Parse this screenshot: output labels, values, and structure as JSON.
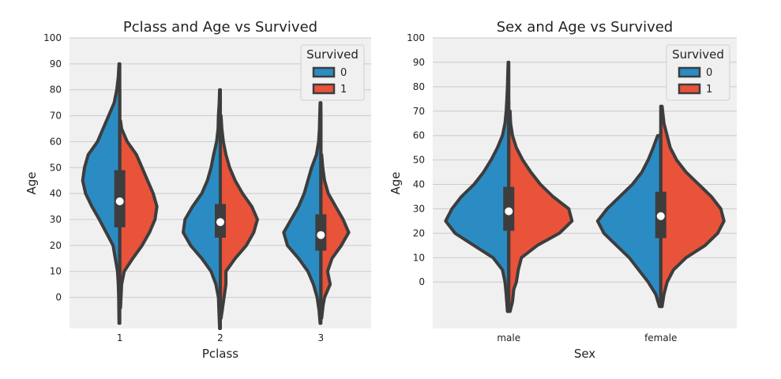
{
  "colors": {
    "class0": "#2b8cc4",
    "class1": "#e8533a",
    "outline": "#3d3d3d",
    "panel_bg": "#f0f0f0",
    "grid": "#cbcbcb",
    "median": "#ffffff"
  },
  "chart_data": [
    {
      "type": "violin",
      "split": true,
      "title": "Pclass and Age vs Survived",
      "xlabel": "Pclass",
      "ylabel": "Age",
      "categories": [
        "1",
        "2",
        "3"
      ],
      "ylim": [
        -12,
        100
      ],
      "yticks": [
        0,
        10,
        20,
        30,
        40,
        50,
        60,
        70,
        80,
        90,
        100
      ],
      "grid": "horizontal",
      "legend": {
        "title": "Survived",
        "placement": "top-right",
        "entries": [
          "0",
          "1"
        ]
      },
      "series": [
        {
          "name": "0",
          "color": "#2b8cc4"
        },
        {
          "name": "1",
          "color": "#e8533a"
        }
      ],
      "violins": [
        {
          "category": "1",
          "box": {
            "q1": 27,
            "median": 37,
            "q3": 49,
            "whisker_low": 1,
            "whisker_high": 80
          },
          "left_profile": [
            [
              -10,
              0.02
            ],
            [
              0,
              0.03
            ],
            [
              5,
              0.04
            ],
            [
              10,
              0.06
            ],
            [
              20,
              0.18
            ],
            [
              30,
              0.55
            ],
            [
              35,
              0.75
            ],
            [
              40,
              0.92
            ],
            [
              45,
              1.0
            ],
            [
              50,
              0.95
            ],
            [
              55,
              0.85
            ],
            [
              60,
              0.6
            ],
            [
              65,
              0.45
            ],
            [
              70,
              0.3
            ],
            [
              75,
              0.15
            ],
            [
              80,
              0.08
            ],
            [
              85,
              0.04
            ],
            [
              90,
              0.02
            ]
          ],
          "right_profile": [
            [
              -4,
              0.02
            ],
            [
              5,
              0.05
            ],
            [
              10,
              0.12
            ],
            [
              15,
              0.35
            ],
            [
              20,
              0.6
            ],
            [
              25,
              0.8
            ],
            [
              30,
              0.95
            ],
            [
              35,
              1.0
            ],
            [
              40,
              0.9
            ],
            [
              45,
              0.75
            ],
            [
              50,
              0.6
            ],
            [
              55,
              0.45
            ],
            [
              60,
              0.2
            ],
            [
              65,
              0.05
            ],
            [
              68,
              0.02
            ]
          ]
        },
        {
          "category": "2",
          "box": {
            "q1": 23,
            "median": 29,
            "q3": 36,
            "whisker_low": 1,
            "whisker_high": 70
          },
          "left_profile": [
            [
              -12,
              0.02
            ],
            [
              0,
              0.05
            ],
            [
              5,
              0.12
            ],
            [
              10,
              0.25
            ],
            [
              15,
              0.5
            ],
            [
              20,
              0.8
            ],
            [
              25,
              1.0
            ],
            [
              30,
              0.95
            ],
            [
              35,
              0.75
            ],
            [
              40,
              0.5
            ],
            [
              45,
              0.35
            ],
            [
              50,
              0.25
            ],
            [
              55,
              0.18
            ],
            [
              60,
              0.1
            ],
            [
              65,
              0.06
            ],
            [
              70,
              0.05
            ],
            [
              75,
              0.03
            ],
            [
              80,
              0.02
            ]
          ],
          "right_profile": [
            [
              -8,
              0.02
            ],
            [
              -5,
              0.05
            ],
            [
              0,
              0.1
            ],
            [
              5,
              0.15
            ],
            [
              10,
              0.15
            ],
            [
              15,
              0.4
            ],
            [
              20,
              0.7
            ],
            [
              25,
              0.9
            ],
            [
              30,
              1.0
            ],
            [
              35,
              0.85
            ],
            [
              40,
              0.6
            ],
            [
              45,
              0.4
            ],
            [
              50,
              0.25
            ],
            [
              55,
              0.15
            ],
            [
              60,
              0.08
            ],
            [
              65,
              0.04
            ],
            [
              70,
              0.02
            ]
          ]
        },
        {
          "category": "3",
          "box": {
            "q1": 18,
            "median": 24,
            "q3": 32,
            "whisker_low": 1,
            "whisker_high": 72
          },
          "left_profile": [
            [
              -10,
              0.02
            ],
            [
              -5,
              0.05
            ],
            [
              0,
              0.1
            ],
            [
              5,
              0.2
            ],
            [
              10,
              0.35
            ],
            [
              15,
              0.6
            ],
            [
              20,
              0.9
            ],
            [
              25,
              1.0
            ],
            [
              30,
              0.8
            ],
            [
              35,
              0.6
            ],
            [
              40,
              0.45
            ],
            [
              45,
              0.35
            ],
            [
              50,
              0.25
            ],
            [
              55,
              0.12
            ],
            [
              60,
              0.06
            ],
            [
              65,
              0.04
            ],
            [
              70,
              0.03
            ],
            [
              75,
              0.02
            ]
          ],
          "right_profile": [
            [
              -8,
              0.02
            ],
            [
              -3,
              0.06
            ],
            [
              0,
              0.1
            ],
            [
              5,
              0.25
            ],
            [
              10,
              0.18
            ],
            [
              15,
              0.3
            ],
            [
              20,
              0.55
            ],
            [
              25,
              0.75
            ],
            [
              30,
              0.6
            ],
            [
              35,
              0.4
            ],
            [
              40,
              0.2
            ],
            [
              45,
              0.1
            ],
            [
              50,
              0.05
            ],
            [
              55,
              0.02
            ]
          ]
        }
      ]
    },
    {
      "type": "violin",
      "split": true,
      "title": "Sex and Age vs Survived",
      "xlabel": "Sex",
      "ylabel": "Age",
      "categories": [
        "male",
        "female"
      ],
      "ylim": [
        -19,
        100
      ],
      "yticks": [
        0,
        10,
        20,
        30,
        40,
        50,
        60,
        70,
        80,
        90,
        100
      ],
      "grid": "horizontal",
      "legend": {
        "title": "Survived",
        "placement": "top-right",
        "entries": [
          "0",
          "1"
        ]
      },
      "series": [
        {
          "name": "0",
          "color": "#2b8cc4"
        },
        {
          "name": "1",
          "color": "#e8533a"
        }
      ],
      "violins": [
        {
          "category": "male",
          "box": {
            "q1": 21,
            "median": 29,
            "q3": 39,
            "whisker_low": 1,
            "whisker_high": 74
          },
          "left_profile": [
            [
              -12,
              0.02
            ],
            [
              -5,
              0.04
            ],
            [
              0,
              0.06
            ],
            [
              5,
              0.1
            ],
            [
              10,
              0.25
            ],
            [
              15,
              0.55
            ],
            [
              20,
              0.85
            ],
            [
              25,
              1.0
            ],
            [
              30,
              0.9
            ],
            [
              35,
              0.75
            ],
            [
              40,
              0.55
            ],
            [
              45,
              0.4
            ],
            [
              50,
              0.28
            ],
            [
              55,
              0.18
            ],
            [
              60,
              0.1
            ],
            [
              65,
              0.06
            ],
            [
              70,
              0.04
            ],
            [
              75,
              0.03
            ],
            [
              80,
              0.02
            ],
            [
              85,
              0.015
            ],
            [
              90,
              0.01
            ]
          ],
          "right_profile": [
            [
              -12,
              0.02
            ],
            [
              -8,
              0.06
            ],
            [
              -3,
              0.08
            ],
            [
              0,
              0.12
            ],
            [
              5,
              0.15
            ],
            [
              10,
              0.2
            ],
            [
              15,
              0.45
            ],
            [
              20,
              0.8
            ],
            [
              25,
              1.0
            ],
            [
              30,
              0.95
            ],
            [
              35,
              0.7
            ],
            [
              40,
              0.5
            ],
            [
              45,
              0.35
            ],
            [
              50,
              0.22
            ],
            [
              55,
              0.12
            ],
            [
              60,
              0.06
            ],
            [
              65,
              0.03
            ],
            [
              70,
              0.02
            ]
          ]
        },
        {
          "category": "female",
          "box": {
            "q1": 18,
            "median": 27,
            "q3": 37,
            "whisker_low": 1,
            "whisker_high": 62
          },
          "left_profile": [
            [
              -10,
              0.02
            ],
            [
              -5,
              0.08
            ],
            [
              0,
              0.2
            ],
            [
              5,
              0.35
            ],
            [
              10,
              0.5
            ],
            [
              15,
              0.7
            ],
            [
              20,
              0.9
            ],
            [
              25,
              1.0
            ],
            [
              30,
              0.85
            ],
            [
              35,
              0.65
            ],
            [
              40,
              0.45
            ],
            [
              45,
              0.3
            ],
            [
              50,
              0.2
            ],
            [
              55,
              0.12
            ],
            [
              60,
              0.05
            ]
          ],
          "right_profile": [
            [
              -10,
              0.02
            ],
            [
              -5,
              0.05
            ],
            [
              0,
              0.1
            ],
            [
              5,
              0.2
            ],
            [
              10,
              0.4
            ],
            [
              15,
              0.7
            ],
            [
              20,
              0.9
            ],
            [
              25,
              1.0
            ],
            [
              30,
              0.95
            ],
            [
              35,
              0.8
            ],
            [
              40,
              0.6
            ],
            [
              45,
              0.4
            ],
            [
              50,
              0.25
            ],
            [
              55,
              0.15
            ],
            [
              60,
              0.1
            ],
            [
              65,
              0.05
            ],
            [
              70,
              0.03
            ],
            [
              72,
              0.02
            ]
          ]
        }
      ]
    }
  ]
}
